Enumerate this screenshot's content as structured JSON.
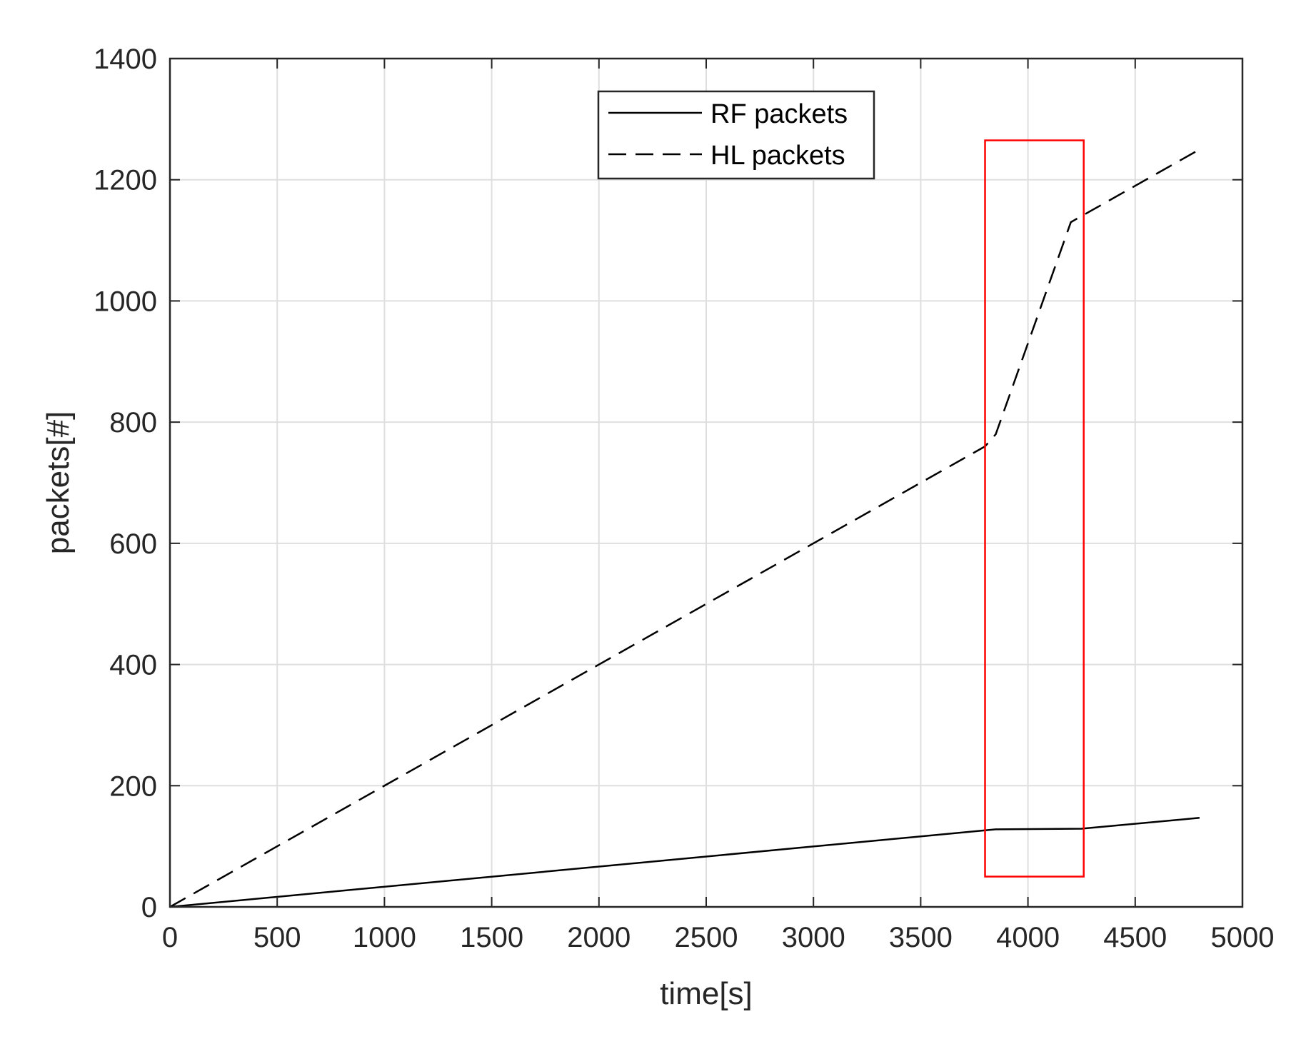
{
  "chart_data": {
    "type": "line",
    "title": "",
    "xlabel": "time[s]",
    "ylabel": "packets[#]",
    "xlim": [
      0,
      5000
    ],
    "ylim": [
      0,
      1400
    ],
    "xticks": [
      0,
      500,
      1000,
      1500,
      2000,
      2500,
      3000,
      3500,
      4000,
      4500,
      5000
    ],
    "yticks": [
      0,
      200,
      400,
      600,
      800,
      1000,
      1200,
      1400
    ],
    "xtick_labels": [
      "0",
      "500",
      "1000",
      "1500",
      "2000",
      "2500",
      "3000",
      "3500",
      "4000",
      "4500",
      "5000"
    ],
    "ytick_labels": [
      "0",
      "200",
      "400",
      "600",
      "800",
      "1000",
      "1200",
      "1400"
    ],
    "grid": true,
    "legend_position": "top-center",
    "series": [
      {
        "name": "RF packets",
        "style": "solid",
        "color": "#000000",
        "x": [
          0,
          3850,
          4250,
          4800
        ],
        "y": [
          0,
          128,
          129,
          147
        ]
      },
      {
        "name": "HL packets",
        "style": "dashed",
        "color": "#000000",
        "x": [
          0,
          3800,
          3850,
          4200,
          4800
        ],
        "y": [
          0,
          760,
          780,
          1130,
          1250
        ]
      }
    ],
    "annotations": [
      {
        "type": "rectangle",
        "color": "#ff0000",
        "x_range": [
          3800,
          4260
        ],
        "y_range": [
          50,
          1265
        ]
      }
    ]
  }
}
